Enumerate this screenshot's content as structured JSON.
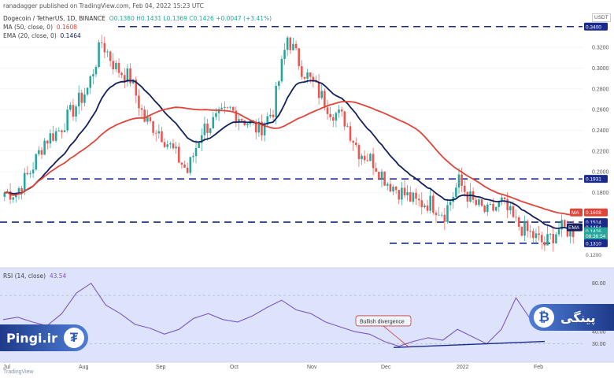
{
  "publisher": "ranadagger published on TradingView.com, Feb 04, 2022 15:23 UTC",
  "header": {
    "symbol": "Dogecoin / TetherUS, 1D, BINANCE",
    "ohlc": "O0.1380  H0.1431  L0.1369  C0.1426  +0.0047 (+3.41%)",
    "ma_label": "MA (50, close, 0)",
    "ma_value": "0.1608",
    "ema_label": "EMA (20, close, 0)",
    "ema_value": "0.1464",
    "rsi_label": "RSI (14, close)",
    "rsi_value": "43.54"
  },
  "quote_unit": "USDT",
  "watermark": "TradingView",
  "branding": {
    "left": "Pingi.ir",
    "left_coin": "₮",
    "right": "پینگی",
    "right_coin": "₿"
  },
  "colors": {
    "up": "#26a69a",
    "down": "#ef5350",
    "ema": "#131f5e",
    "ma": "#e0453a",
    "rsi": "#7e57c2",
    "level": "#1a2a8a",
    "pane_tint": "#dde3fa"
  },
  "chart_data": [
    {
      "type": "candlestick",
      "title": "Dogecoin / TetherUS, 1D, BINANCE",
      "ylabel": "USDT",
      "ylim": [
        0.115,
        0.355
      ],
      "x_ticks": [
        "Jul",
        "Aug",
        "Sep",
        "Oct",
        "Nov",
        "Dec",
        "2022",
        "Feb"
      ],
      "y_ticks": [
        "0.3200",
        "0.3000",
        "0.2800",
        "0.2600",
        "0.2400",
        "0.2200",
        "0.2000",
        "0.1800"
      ],
      "bars": [
        0.18,
        0.2,
        0.23,
        0.24,
        0.26,
        0.28,
        0.325,
        0.3,
        0.29,
        0.25,
        0.24,
        0.22,
        0.2,
        0.24,
        0.25,
        0.26,
        0.25,
        0.24,
        0.26,
        0.33,
        0.3,
        0.28,
        0.26,
        0.25,
        0.22,
        0.21,
        0.19,
        0.18,
        0.17,
        0.17,
        0.16,
        0.19,
        0.17,
        0.16,
        0.17,
        0.15,
        0.14,
        0.13,
        0.145,
        0.143
      ],
      "horizontal_levels": [
        "0.3400",
        "0.1931",
        "0.1514",
        "0.1310"
      ],
      "series": [
        {
          "name": "EMA (20, close, 0)",
          "last": 0.1464
        },
        {
          "name": "MA (50, close, 0)",
          "last": 0.1608
        }
      ],
      "price_tags": [
        {
          "text": "0.3400",
          "value": 0.34
        },
        {
          "text": "0.1931",
          "value": 0.1931
        },
        {
          "text": "MA",
          "value": 0.1608
        },
        {
          "text": "0.1608",
          "value": 0.1608
        },
        {
          "text": "0.1514",
          "value": 0.1514
        },
        {
          "text": "EMA",
          "value": 0.1464
        },
        {
          "text": "0.1464",
          "value": 0.1464
        },
        {
          "text": "0.1426",
          "value": 0.1426
        },
        {
          "text": "08:36:54",
          "value": 0.138
        },
        {
          "text": "0.1310",
          "value": 0.131
        },
        {
          "text": "0.1200",
          "value": 0.12
        }
      ]
    },
    {
      "type": "line",
      "title": "RSI (14, close)",
      "ylim": [
        20,
        85
      ],
      "y_ticks": [
        "80.00",
        "60.00",
        "40.00",
        "30.00"
      ],
      "values": [
        50,
        52,
        48,
        45,
        55,
        72,
        80,
        62,
        55,
        46,
        43,
        38,
        42,
        51,
        55,
        50,
        48,
        53,
        60,
        66,
        58,
        55,
        48,
        44,
        40,
        38,
        32,
        28,
        32,
        35,
        33,
        42,
        36,
        30,
        42,
        68,
        50,
        41,
        48,
        43.54
      ],
      "annotation": "Bullish divergence"
    }
  ]
}
